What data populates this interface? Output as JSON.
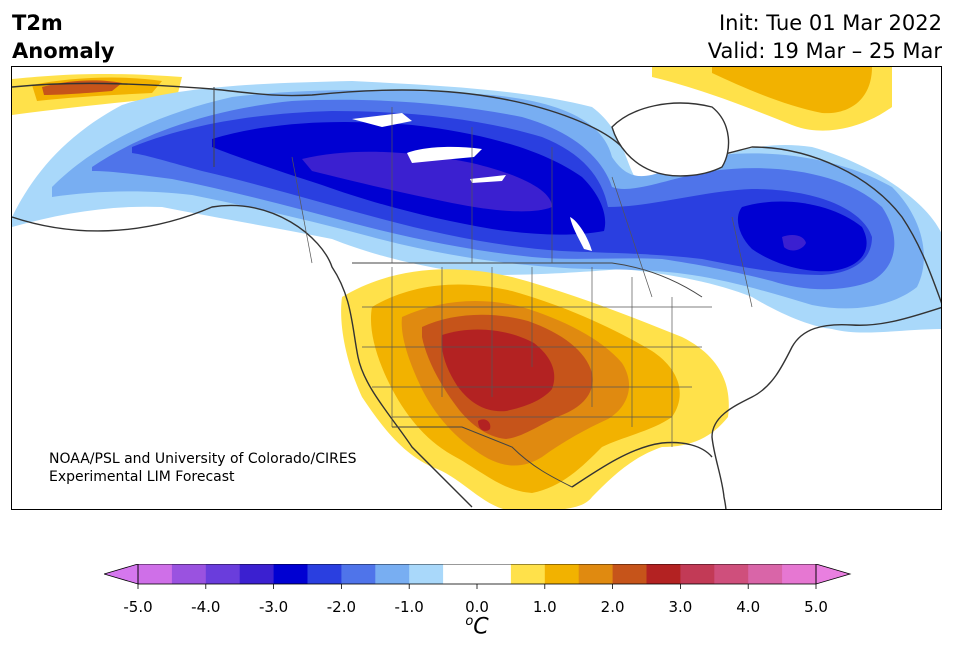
{
  "title": {
    "variable": "T2m",
    "quantity": "Anomaly",
    "init": "Init: Tue 01 Mar 2022",
    "valid": "Valid: 19 Mar – 25 Mar"
  },
  "credit": {
    "line1": "NOAA/PSL and University of Colorado/CIRES",
    "line2": "Experimental LIM Forecast"
  },
  "colorbar": {
    "unit_prefix": "o",
    "unit_letter": "C",
    "ticks": [
      "-5.0",
      "-4.0",
      "-3.0",
      "-2.0",
      "-1.0",
      "0.0",
      "1.0",
      "2.0",
      "3.0",
      "4.0",
      "5.0"
    ],
    "range": [
      -5.0,
      5.0
    ],
    "step": 0.5,
    "colors": [
      "#cf6fe8",
      "#9a52e0",
      "#6a3ddc",
      "#3b20d0",
      "#0000d2",
      "#2a3fe0",
      "#4f74ea",
      "#78aef2",
      "#a9d8fa",
      "#ffffff",
      "#ffffff",
      "#ffe14a",
      "#f2b200",
      "#e08a10",
      "#c6541a",
      "#b32222",
      "#c23a56",
      "#cf4f7c",
      "#d965a8",
      "#e677d2"
    ],
    "under_color": "#d577ee",
    "over_color": "#e97fe0"
  },
  "map": {
    "region": "North America",
    "projection": "Lambert conformal",
    "features": [
      "coastlines",
      "country borders",
      "state and province borders",
      "great lakes"
    ],
    "anomalies": [
      {
        "area": "Southwest US / Four Corners",
        "max_anomaly": 3.0,
        "sign": "warm"
      },
      {
        "area": "Central Canada / Manitoba",
        "min_anomaly": -3.0,
        "sign": "cold"
      },
      {
        "area": "Quebec / Labrador",
        "min_anomaly": -3.0,
        "sign": "cold"
      },
      {
        "area": "Northern Alaska",
        "max_anomaly": 2.0,
        "sign": "warm"
      },
      {
        "area": "Greenland",
        "max_anomaly": 1.5,
        "sign": "warm"
      }
    ]
  }
}
